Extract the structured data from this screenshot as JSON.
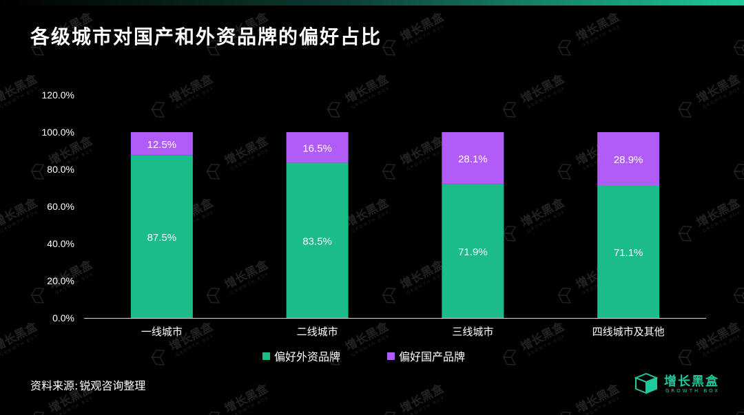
{
  "title": "各级城市对国产和外资品牌的偏好占比",
  "source": {
    "label": "资料来源",
    "separator": ":",
    "text": "锐观咨询整理"
  },
  "brand": {
    "name": "增长黑盒",
    "subtitle": "GROWTH BOX",
    "color": "#1ec99b"
  },
  "watermark": {
    "name": "增长黑盒",
    "subtitle": "GROWTH BOX"
  },
  "chart_data": {
    "type": "bar",
    "stacked": true,
    "categories": [
      "一线城市",
      "二线城市",
      "三线城市",
      "四线城市及其他"
    ],
    "series": [
      {
        "name": "偏好外资品牌",
        "values": [
          87.5,
          83.5,
          71.9,
          71.1
        ],
        "labels": [
          "87.5%",
          "83.5%",
          "71.9%",
          "71.1%"
        ],
        "color": "#1abc8a"
      },
      {
        "name": "偏好国产品牌",
        "values": [
          12.5,
          16.5,
          28.1,
          28.9
        ],
        "labels": [
          "12.5%",
          "16.5%",
          "28.1%",
          "28.9%"
        ],
        "color": "#b15cf6"
      }
    ],
    "ylim": [
      0,
      120
    ],
    "yticks": [
      0,
      20,
      40,
      60,
      80,
      100,
      120
    ],
    "ytick_labels": [
      "0.0%",
      "20.0%",
      "40.0%",
      "60.0%",
      "80.0%",
      "100.0%",
      "120.0%"
    ],
    "xlabel": "",
    "ylabel": "",
    "grid": false,
    "legend_position": "bottom"
  }
}
